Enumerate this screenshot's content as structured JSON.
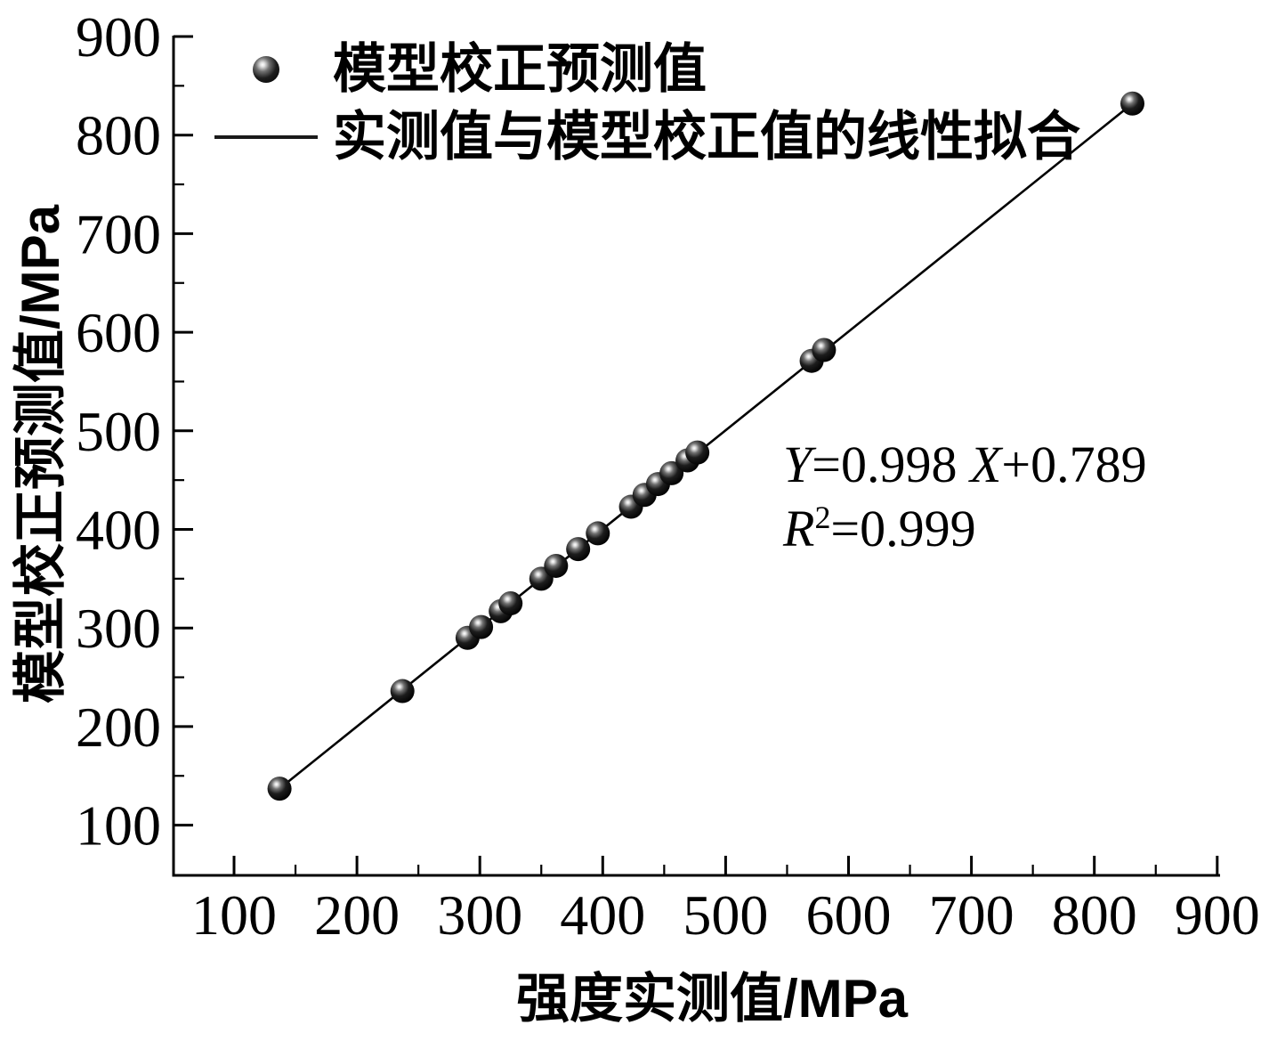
{
  "figure": {
    "background": "#ffffff",
    "ink_color": "#000000"
  },
  "chart_data": {
    "type": "scatter",
    "title": "",
    "xlabel": "强度实测值/MPa",
    "ylabel": "模型校正预测值/MPa",
    "xlim": [
      50,
      903
    ],
    "ylim": [
      50,
      902
    ],
    "x_ticks": [
      100,
      200,
      300,
      400,
      500,
      600,
      700,
      800,
      900
    ],
    "y_ticks": [
      100,
      200,
      300,
      400,
      500,
      600,
      700,
      800,
      900
    ],
    "minor_tick_step": 50,
    "grid": false,
    "legend_position": "upper-left-inside",
    "series": [
      {
        "name": "模型校正预测值",
        "type": "scatter",
        "marker": "sphere",
        "color": "#000000",
        "points": [
          [
            137,
            137
          ],
          [
            237,
            236
          ],
          [
            290,
            290
          ],
          [
            301,
            301
          ],
          [
            317,
            317
          ],
          [
            325,
            325
          ],
          [
            350,
            350
          ],
          [
            362,
            363
          ],
          [
            380,
            380
          ],
          [
            396,
            396
          ],
          [
            423,
            423
          ],
          [
            434,
            435
          ],
          [
            445,
            446
          ],
          [
            456,
            457
          ],
          [
            469,
            470
          ],
          [
            477,
            478
          ],
          [
            570,
            571
          ],
          [
            580,
            582
          ],
          [
            831,
            832
          ]
        ]
      },
      {
        "name": "实测值与模型校正值的线性拟合",
        "type": "line",
        "color": "#000000",
        "equation": "Y=0.998X+0.789",
        "r_squared": "0.999",
        "endpoints": [
          [
            137,
            137
          ],
          [
            831,
            832
          ]
        ]
      }
    ],
    "annotation": {
      "plain": [
        "Y=0.998 X+0.789",
        "R²=0.999"
      ],
      "lines": [
        [
          {
            "t": "Y",
            "i": 1
          },
          {
            "t": "=0.998 "
          },
          {
            "t": "X",
            "i": 1
          },
          {
            "t": "+0.789"
          }
        ],
        [
          {
            "t": "R",
            "i": 1
          },
          {
            "t": "2",
            "sup": 1
          },
          {
            "t": "=0.999"
          }
        ]
      ]
    }
  }
}
